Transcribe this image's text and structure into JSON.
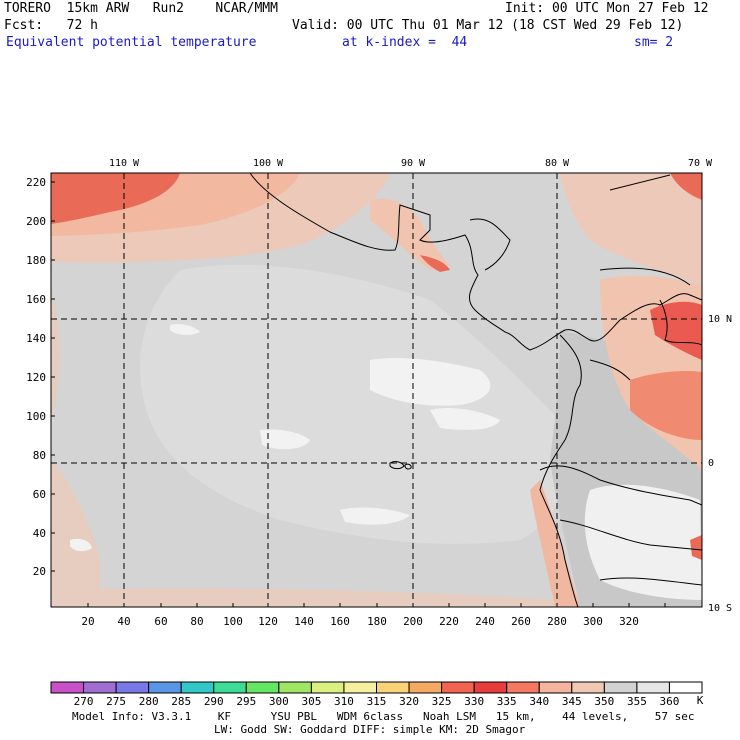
{
  "header": {
    "model": "TORERO  15km ARW   Run2    NCAR/MMM",
    "init": "Init: 00 UTC Mon 27 Feb 12",
    "fcst": "Fcst:   72 h",
    "valid": "Valid: 00 UTC Thu 01 Mar 12 (18 CST Wed 29 Feb 12)",
    "field": "Equivalent potential temperature",
    "level": "at k-index =  44",
    "smooth": "sm= 2"
  },
  "map": {
    "x_ticks": [
      "20",
      "40",
      "60",
      "80",
      "100",
      "120",
      "140",
      "160",
      "180",
      "200",
      "220",
      "240",
      "260",
      "280",
      "300",
      "320"
    ],
    "y_ticks": [
      "20",
      "40",
      "60",
      "80",
      "100",
      "120",
      "140",
      "160",
      "180",
      "200",
      "220"
    ],
    "lon_labels": [
      "110 W",
      "100 W",
      "90 W",
      "80 W",
      "70 W"
    ],
    "lat_labels": [
      "10 N",
      "0",
      "10 S"
    ]
  },
  "colorbar": {
    "labels": [
      "270",
      "275",
      "280",
      "285",
      "290",
      "295",
      "300",
      "305",
      "310",
      "315",
      "320",
      "325",
      "330",
      "335",
      "340",
      "345",
      "350",
      "355",
      "360"
    ],
    "unit": "K",
    "colors": [
      "#c850c8",
      "#a06ed2",
      "#7878e6",
      "#5a96e6",
      "#32c8c8",
      "#3cdc96",
      "#64e664",
      "#a0e664",
      "#dcf082",
      "#f5f0a0",
      "#fad278",
      "#f5aa64",
      "#f06450",
      "#e63c3c",
      "#f57860",
      "#f5b4a0",
      "#f0c8b4",
      "#d2d2d2",
      "#e6e6e6",
      "#ffffff"
    ]
  },
  "footer": {
    "line1": "Model Info: V3.3.1    KF      YSU PBL   WDM 6class   Noah LSM   15 km,    44 levels,    57 sec",
    "line2": "LW: Godd SW: Goddard DIFF: simple KM: 2D Smagor"
  }
}
